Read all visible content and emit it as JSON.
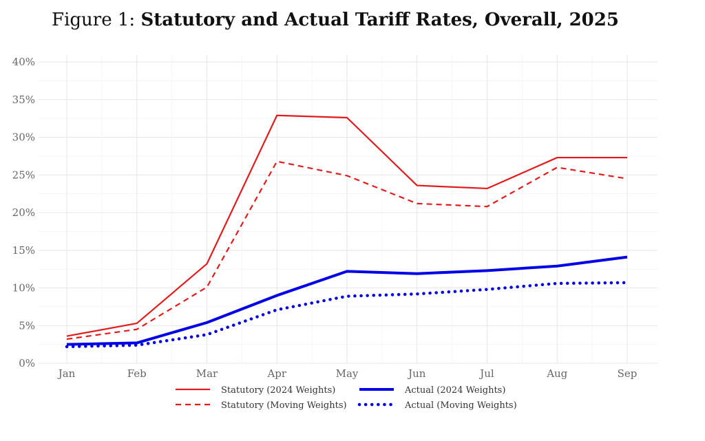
{
  "chart_data": {
    "type": "line",
    "title_prefix": "Figure 1:",
    "title": "Statutory and Actual Tariff Rates, Overall, 2025",
    "xlabel": "",
    "ylabel": "",
    "categories": [
      "Jan",
      "Feb",
      "Mar",
      "Apr",
      "May",
      "Jun",
      "Jul",
      "Aug",
      "Sep"
    ],
    "ylim": [
      0,
      40
    ],
    "yticks": [
      "0%",
      "5%",
      "10%",
      "15%",
      "20%",
      "25%",
      "30%",
      "35%",
      "40%"
    ],
    "grid": true,
    "legend_position": "bottom",
    "series": [
      {
        "name": "Statutory (2024 Weights)",
        "color": "#e31a1c",
        "style": "solid",
        "values": [
          3.6,
          5.3,
          13.2,
          32.9,
          32.6,
          23.6,
          23.2,
          27.3,
          27.3
        ]
      },
      {
        "name": "Actual (2024 Weights)",
        "color": "#0000e6",
        "style": "solid-thick",
        "values": [
          2.5,
          2.7,
          5.4,
          9.0,
          12.2,
          11.9,
          12.3,
          12.9,
          14.1
        ]
      },
      {
        "name": "Statutory (Moving Weights)",
        "color": "#e31a1c",
        "style": "dashed",
        "values": [
          3.2,
          4.5,
          10.1,
          26.8,
          24.9,
          21.2,
          20.8,
          26.0,
          24.5
        ]
      },
      {
        "name": "Actual (Moving Weights)",
        "color": "#0000e6",
        "style": "dotted",
        "values": [
          2.2,
          2.4,
          3.8,
          7.1,
          8.9,
          9.2,
          9.8,
          10.6,
          10.7
        ]
      }
    ]
  }
}
